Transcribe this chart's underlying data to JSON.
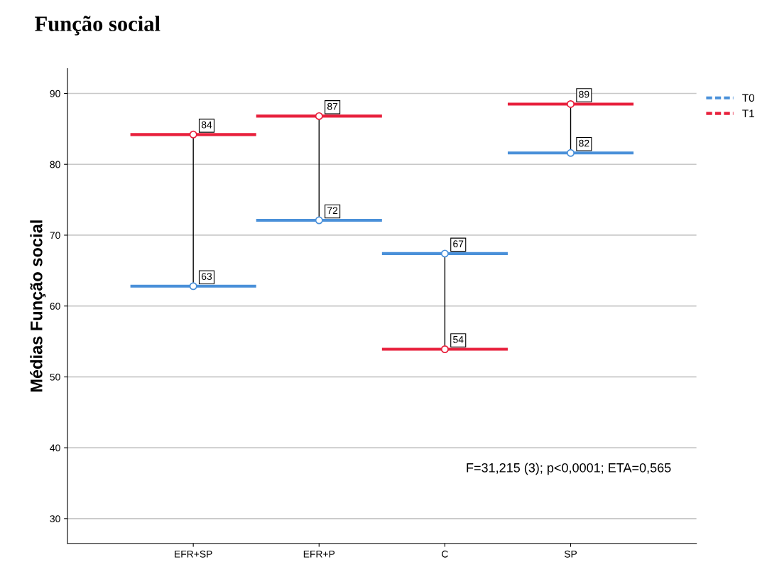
{
  "chart_data": {
    "type": "scatter",
    "title": "Função social",
    "ylabel": "Médias Função social",
    "categories": [
      "EFR+SP",
      "EFR+P",
      "C",
      "SP"
    ],
    "series": [
      {
        "name": "T0",
        "color": "#4a90d9",
        "values": [
          62.8,
          72.1,
          67.4,
          81.6
        ],
        "value_labels": [
          "63",
          "72",
          "67",
          "82"
        ]
      },
      {
        "name": "T1",
        "color": "#e8203c",
        "values": [
          84.2,
          86.8,
          53.9,
          88.5
        ],
        "value_labels": [
          "84",
          "87",
          "54",
          "89"
        ]
      }
    ],
    "marker": "circle",
    "ylim": [
      26.5,
      93.5
    ],
    "yticks": [
      30,
      40,
      50,
      60,
      70,
      80,
      90
    ],
    "grid": "y",
    "legend": "right",
    "annotations": [
      "F=31,215 (3); p<0,0001; ETA=0,565"
    ]
  }
}
